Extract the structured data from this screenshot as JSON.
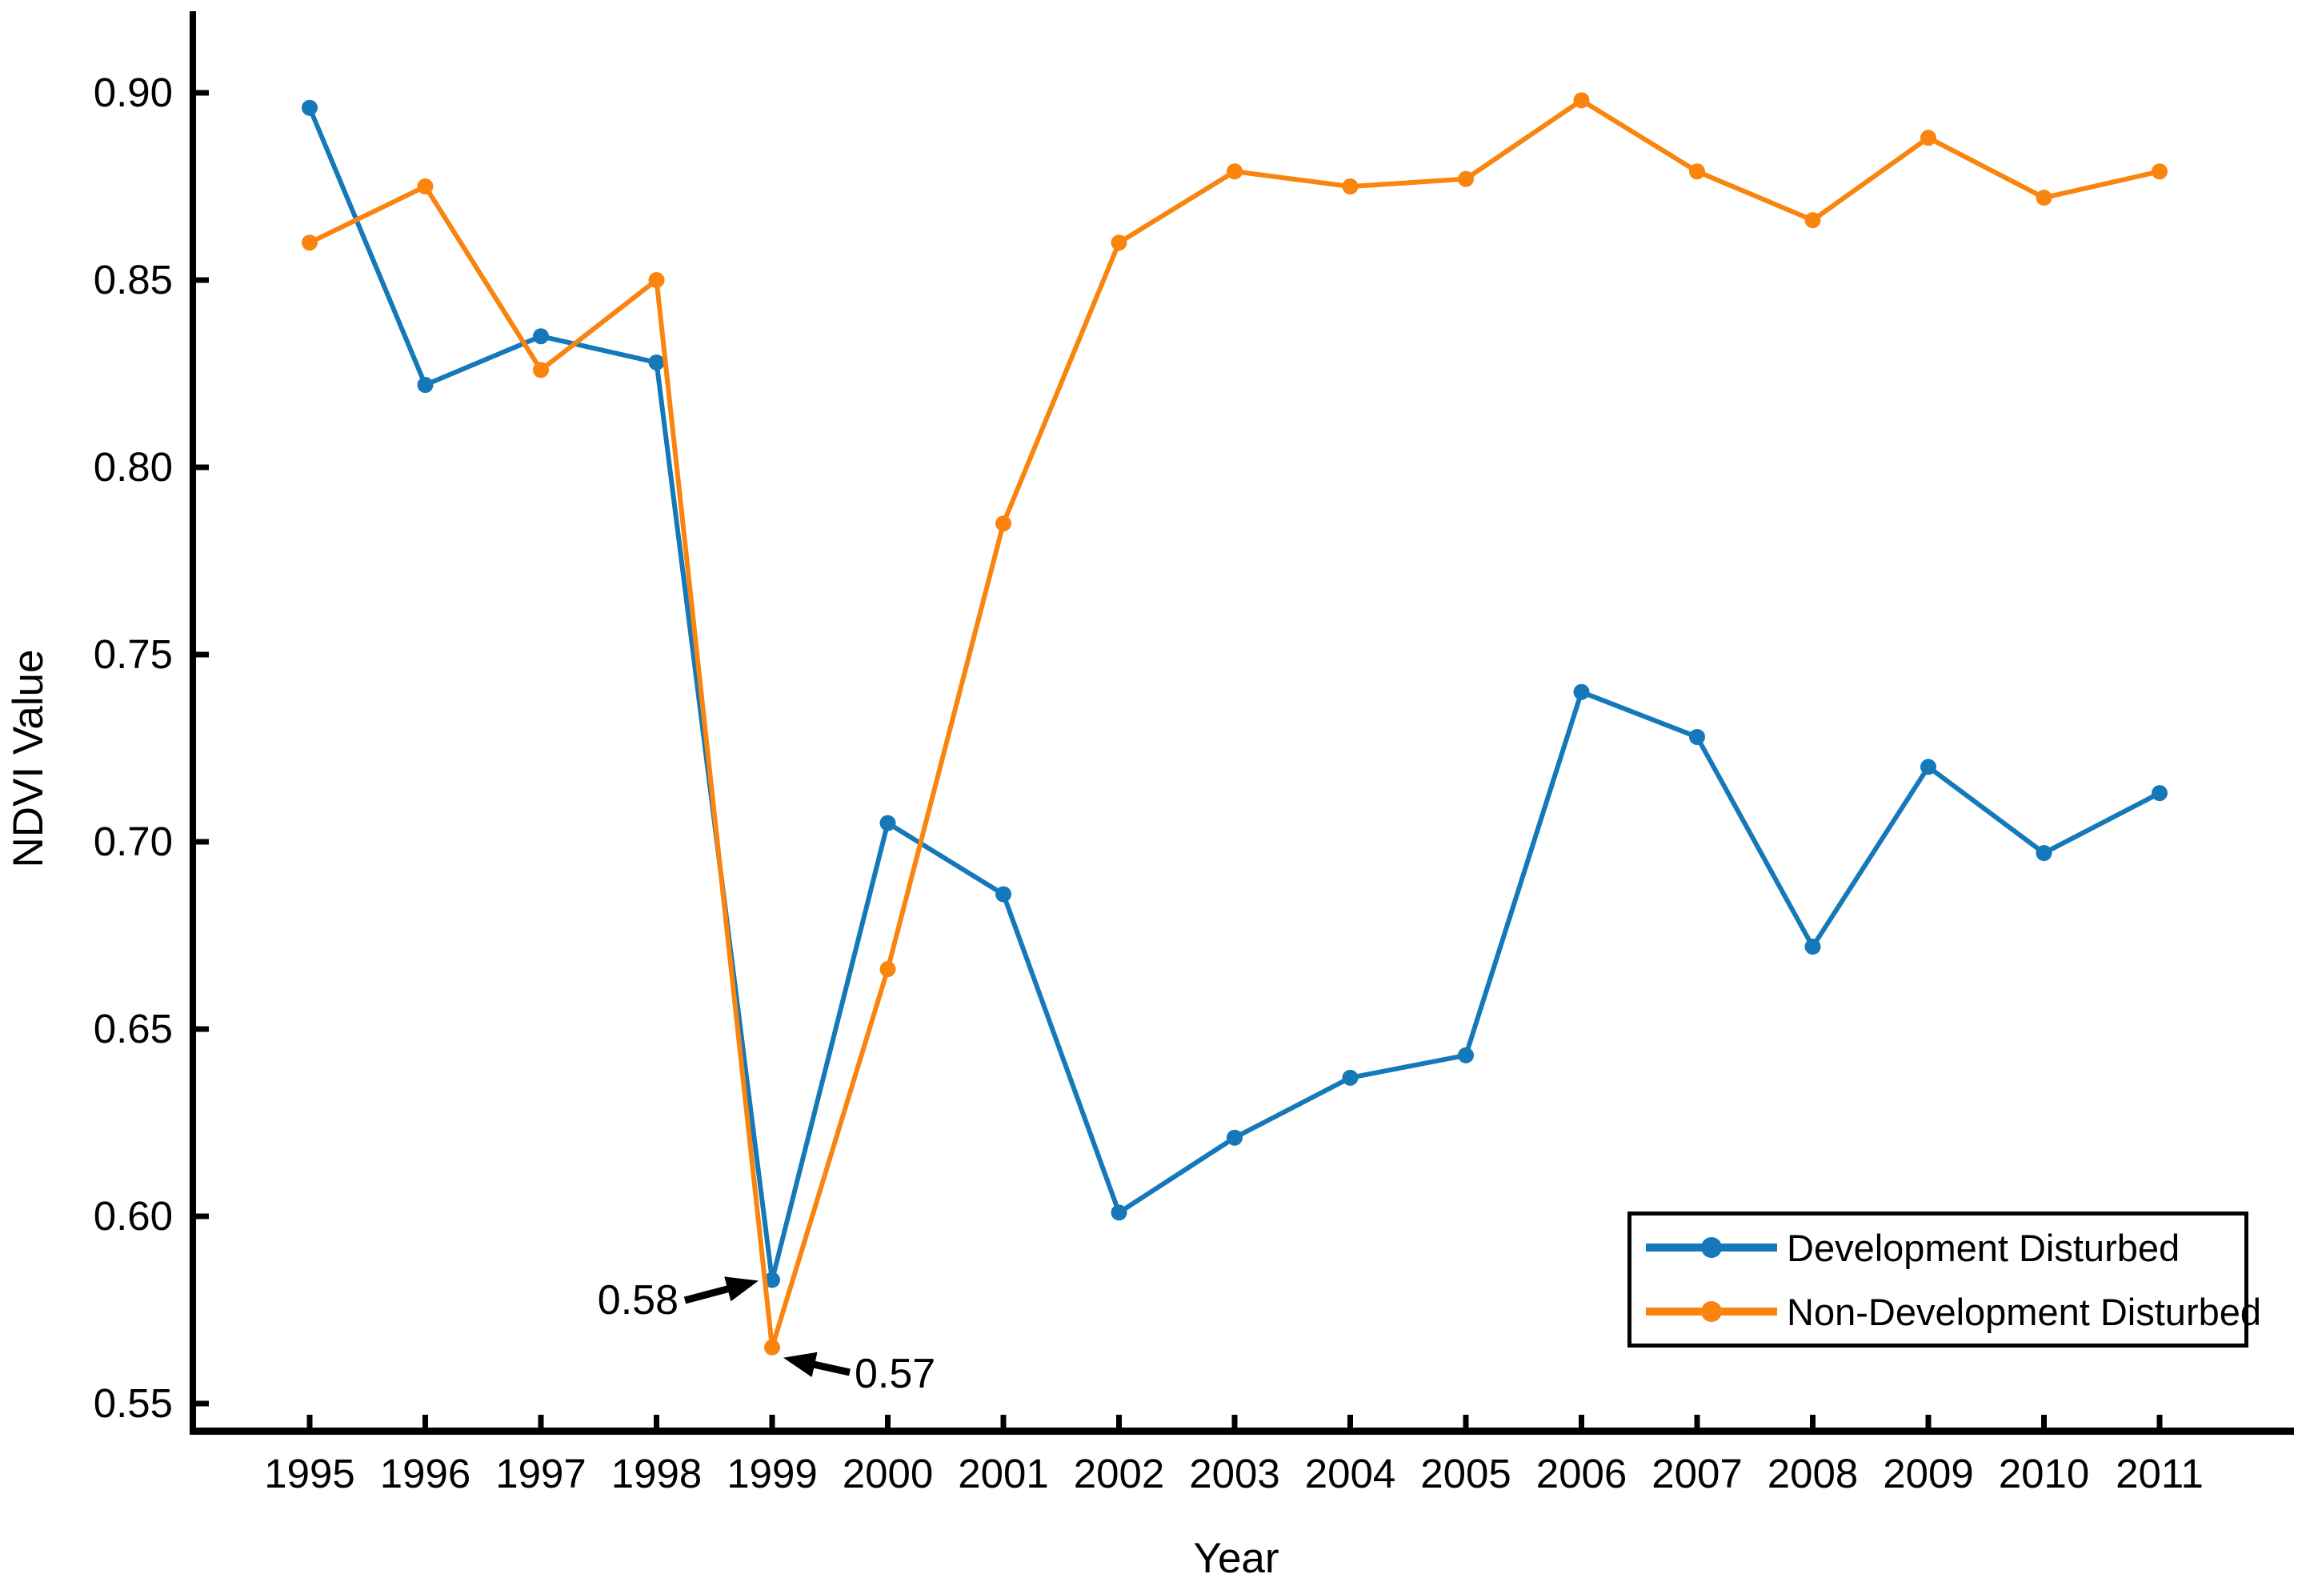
{
  "figure": {
    "background_color": "#ffffff",
    "axis_color": "#000000"
  },
  "chart_data": {
    "type": "line",
    "title": "",
    "xlabel": "Year",
    "ylabel": "NDVI Value",
    "grid": false,
    "legend_position": "lower-right-inside",
    "x": [
      1995,
      1996,
      1997,
      1998,
      1999,
      2000,
      2001,
      2002,
      2003,
      2004,
      2005,
      2006,
      2007,
      2008,
      2009,
      2010,
      2011
    ],
    "x_tick_labels": [
      "1995",
      "1996",
      "1997",
      "1998",
      "1999",
      "2000",
      "2001",
      "2002",
      "2003",
      "2004",
      "2005",
      "2006",
      "2007",
      "2008",
      "2009",
      "2010",
      "2011"
    ],
    "yticks": [
      0.55,
      0.6,
      0.65,
      0.7,
      0.75,
      0.8,
      0.85,
      0.9
    ],
    "y_tick_labels": [
      "0.55",
      "0.60",
      "0.65",
      "0.70",
      "0.75",
      "0.80",
      "0.85",
      "0.90"
    ],
    "ylim": [
      0.543,
      0.918
    ],
    "series": [
      {
        "name": "Development Disturbed",
        "color": "#1478B9",
        "values": [
          0.896,
          0.822,
          0.835,
          0.828,
          0.583,
          0.705,
          0.686,
          0.601,
          0.621,
          0.637,
          0.643,
          0.74,
          0.728,
          0.672,
          0.72,
          0.697,
          0.713
        ]
      },
      {
        "name": "Non-Development Disturbed",
        "color": "#F9840E",
        "values": [
          0.86,
          0.875,
          0.826,
          0.85,
          0.565,
          0.666,
          0.785,
          0.86,
          0.879,
          0.875,
          0.877,
          0.898,
          0.879,
          0.866,
          0.888,
          0.872,
          0.879
        ]
      }
    ],
    "annotations": [
      {
        "text": "0.58",
        "series_index": 0,
        "year": 1999,
        "value": 0.583
      },
      {
        "text": "0.57",
        "series_index": 1,
        "year": 1999,
        "value": 0.565
      }
    ]
  }
}
